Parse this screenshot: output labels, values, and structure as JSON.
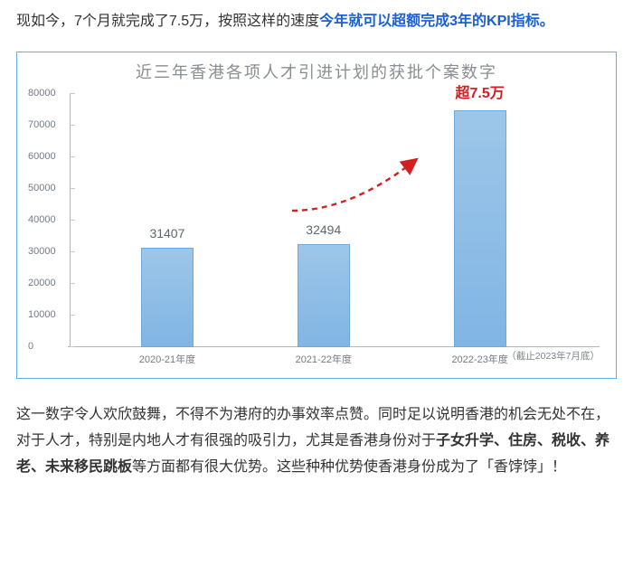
{
  "para1": {
    "t1": "现如今，7个月就完成了7.5万，按照这样的速度",
    "hl": "今年就可以超额完成3年的KPI指标。"
  },
  "chart": {
    "title": "近三年香港各项人才引进计划的获批个案数字",
    "type": "bar",
    "ylim": [
      0,
      80000
    ],
    "ytick_step": 10000,
    "yticks": [
      "0",
      "10000",
      "20000",
      "30000",
      "40000",
      "50000",
      "60000",
      "70000",
      "80000"
    ],
    "bar_color_top": "#9dc6e9",
    "bar_color_bottom": "#81b5e4",
    "bar_border": "#6ea9db",
    "frame_color": "#5fb0ec",
    "axis_color": "#b0b5bc",
    "background": "#ffffff",
    "bars": [
      {
        "x_label": "2020-21年度",
        "value": 31407,
        "top_label": "31407",
        "top_red": false
      },
      {
        "x_label": "2021-22年度",
        "value": 32494,
        "top_label": "32494",
        "top_red": false
      },
      {
        "x_label": "2022-23年度",
        "value": 75000,
        "top_label": "超7.5万",
        "top_red": true
      }
    ],
    "note": "（截止2023年7月底）",
    "arrow_color": "#d22020"
  },
  "para2": {
    "t1": "这一数字令人欢欣鼓舞，不得不为港府的办事效率点赞。同时足以说明香港的机会无处不在，对于人才，特别是内地人才有很强的吸引力，尤其是香港身份对于",
    "bold": "子女升学、住房、税收、养老、未来移民跳板",
    "t2": "等方面都有很大优势。这些种种优势使香港身份成为了「香饽饽」！"
  }
}
